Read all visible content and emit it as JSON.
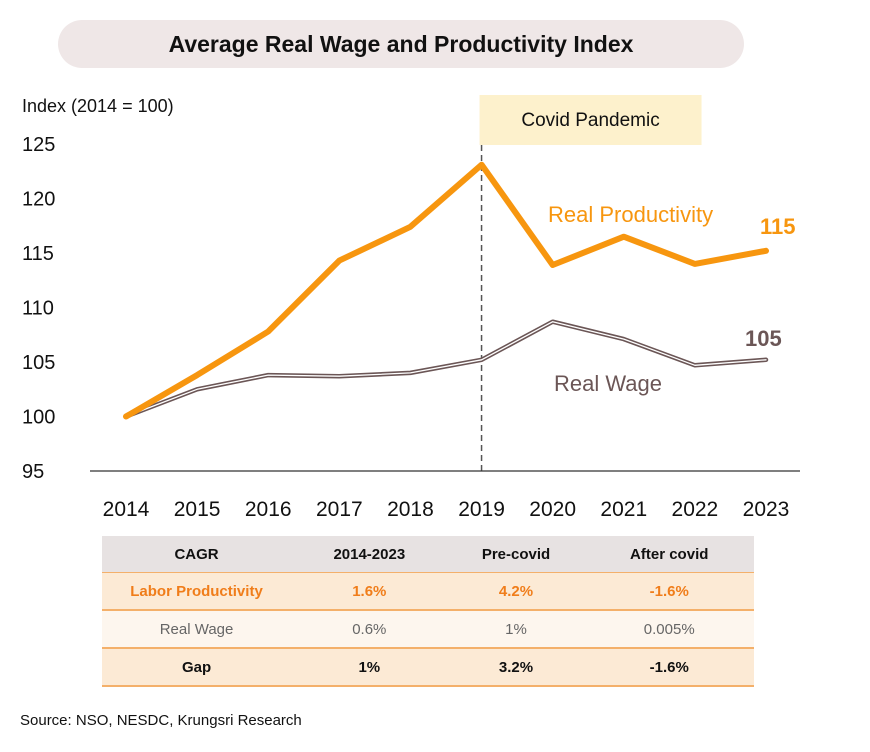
{
  "title": "Average Real Wage and Productivity Index",
  "source": "Source: NSO, NESDC, Krungsri Research",
  "colors": {
    "productivity": "#f7960f",
    "wage": "#6b5656",
    "wage_inner": "#ffffff",
    "covid_box": "#fdf1cc"
  },
  "chart_data": {
    "type": "line",
    "ylabel": "Index (2014 = 100)",
    "ylim": [
      95,
      125
    ],
    "yticks": [
      95,
      100,
      105,
      110,
      115,
      120,
      125
    ],
    "x": [
      "2014",
      "2015",
      "2016",
      "2017",
      "2018",
      "2019",
      "2020",
      "2021",
      "2022",
      "2023"
    ],
    "series": [
      {
        "name": "Real Productivity",
        "values": [
          100,
          103.8,
          107.8,
          114.3,
          117.4,
          123.1,
          113.9,
          116.5,
          114.0,
          115.2
        ],
        "end_label": "115"
      },
      {
        "name": "Real Wage",
        "values": [
          100,
          102.5,
          103.8,
          103.7,
          104.0,
          105.2,
          108.7,
          107.1,
          104.7,
          105.2
        ],
        "end_label": "105"
      }
    ],
    "annotations": [
      {
        "text": "Covid Pandemic",
        "at_x": "2019"
      }
    ]
  },
  "table": {
    "headers": [
      "CAGR",
      "2014-2023",
      "Pre-covid",
      "After covid"
    ],
    "rows": [
      [
        "Labor Productivity",
        "1.6%",
        "4.2%",
        "-1.6%"
      ],
      [
        "Real Wage",
        "0.6%",
        "1%",
        "0.005%"
      ],
      [
        "Gap",
        "1%",
        "3.2%",
        "-1.6%"
      ]
    ]
  }
}
